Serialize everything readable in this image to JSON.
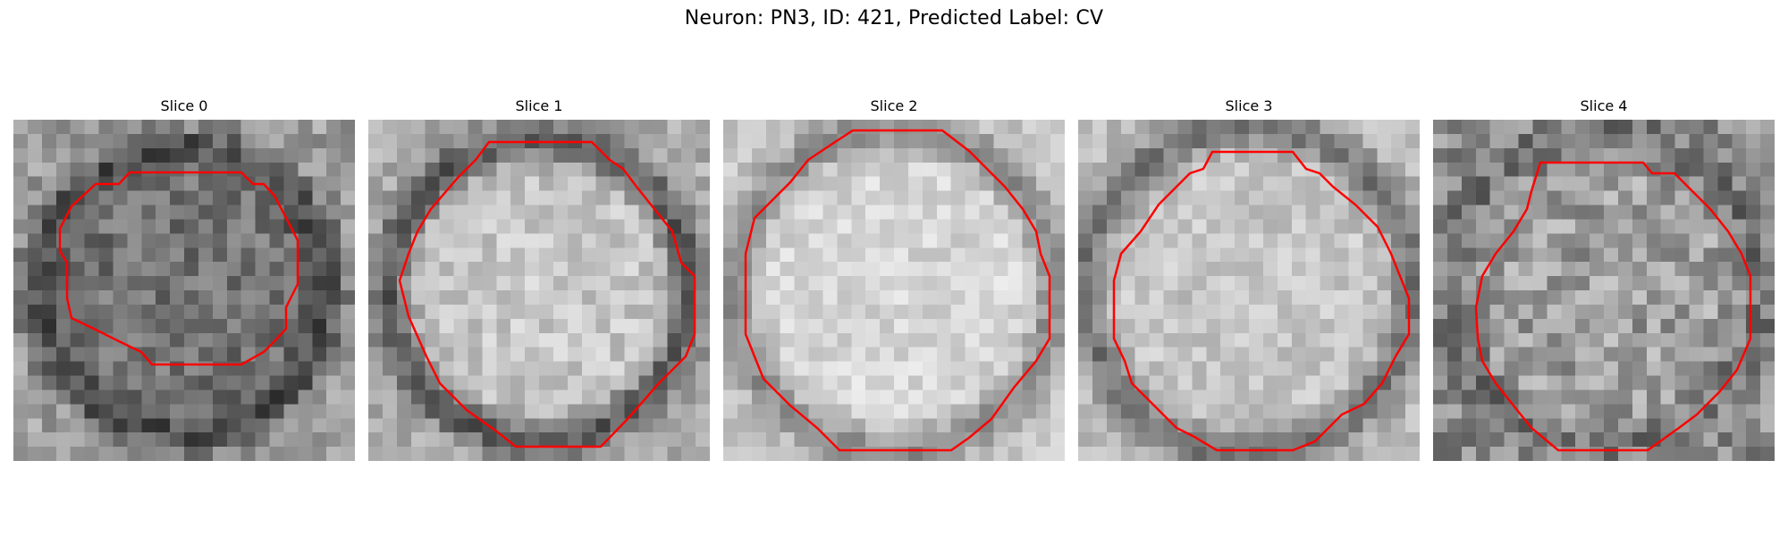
{
  "figure": {
    "title": "Neuron: PN3, ID: 421, Predicted Label: CV",
    "contour_color": "#ff0000",
    "colormap": "gray"
  },
  "panels": [
    {
      "title": "Slice 0"
    },
    {
      "title": "Slice 1"
    },
    {
      "title": "Slice 2"
    },
    {
      "title": "Slice 3"
    },
    {
      "title": "Slice 4"
    }
  ]
}
